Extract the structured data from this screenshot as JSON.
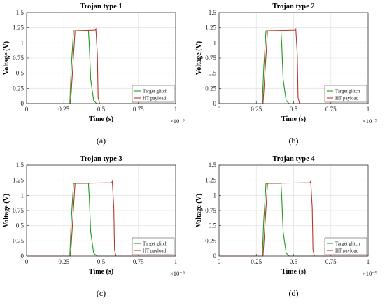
{
  "colors": {
    "target": "#1f9a1f",
    "payload": "#b23a2a",
    "grid": "#e4e4e4"
  },
  "chart_data": [
    {
      "type": "line",
      "title": "Trojan type 1",
      "xlabel": "Time (s)",
      "ylabel": "Voltage (V)",
      "x_exponent": "×10⁻⁹",
      "xlim": [
        0,
        1
      ],
      "ylim": [
        0,
        1.5
      ],
      "xticks": [
        "0",
        "0.25",
        "0.5",
        "0.75",
        "1"
      ],
      "yticks": [
        "0",
        "0.25",
        "0.5",
        "0.75",
        "1",
        "1.25",
        "1.5"
      ],
      "legend": "bottom-right",
      "grid": true,
      "caption": "(a)",
      "series": [
        {
          "name": "Target glitch",
          "x": [
            0,
            0.29,
            0.3,
            0.315,
            0.415,
            0.42,
            0.43,
            0.45,
            0.47,
            1
          ],
          "y": [
            0,
            0,
            0.6,
            1.2,
            1.2,
            1.0,
            0.4,
            0.05,
            0,
            0
          ]
        },
        {
          "name": "HT payload",
          "x": [
            0,
            0.295,
            0.31,
            0.325,
            0.46,
            0.465,
            0.475,
            0.48,
            0.49,
            1
          ],
          "y": [
            0,
            0,
            0.6,
            1.2,
            1.21,
            1.23,
            0.8,
            0.1,
            0,
            0
          ]
        }
      ]
    },
    {
      "type": "line",
      "title": "Trojan type 2",
      "xlabel": "Time (s)",
      "ylabel": "Voltage (V)",
      "x_exponent": "×10⁻⁹",
      "xlim": [
        0,
        1
      ],
      "ylim": [
        0,
        1.5
      ],
      "xticks": [
        "0",
        "0.25",
        "0.5",
        "0.75",
        "1"
      ],
      "yticks": [
        "0",
        "0.25",
        "0.5",
        "0.75",
        "1",
        "1.25",
        "1.5"
      ],
      "legend": "bottom-right",
      "grid": true,
      "caption": "(b)",
      "series": [
        {
          "name": "Target glitch",
          "x": [
            0,
            0.29,
            0.3,
            0.315,
            0.415,
            0.42,
            0.43,
            0.45,
            0.47,
            1
          ],
          "y": [
            0,
            0,
            0.6,
            1.2,
            1.2,
            1.0,
            0.4,
            0.05,
            0,
            0
          ]
        },
        {
          "name": "HT payload",
          "x": [
            0,
            0.295,
            0.31,
            0.325,
            0.51,
            0.515,
            0.525,
            0.53,
            0.54,
            1
          ],
          "y": [
            0,
            0,
            0.6,
            1.2,
            1.21,
            1.23,
            0.8,
            0.1,
            0,
            0
          ]
        }
      ]
    },
    {
      "type": "line",
      "title": "Trojan type 3",
      "xlabel": "Time (s)",
      "ylabel": "Voltage (V)",
      "x_exponent": "×10⁻⁹",
      "xlim": [
        0,
        1
      ],
      "ylim": [
        0,
        1.5
      ],
      "xticks": [
        "0",
        "0.25",
        "0.5",
        "0.75",
        "1"
      ],
      "yticks": [
        "0",
        "0.25",
        "0.5",
        "0.75",
        "1",
        "1.25",
        "1.5"
      ],
      "legend": "bottom-right",
      "grid": true,
      "caption": "(c)",
      "series": [
        {
          "name": "Target glitch",
          "x": [
            0,
            0.29,
            0.3,
            0.315,
            0.415,
            0.42,
            0.43,
            0.45,
            0.47,
            1
          ],
          "y": [
            0,
            0,
            0.6,
            1.2,
            1.2,
            1.0,
            0.4,
            0.05,
            0,
            0
          ]
        },
        {
          "name": "HT payload",
          "x": [
            0,
            0.295,
            0.31,
            0.325,
            0.57,
            0.575,
            0.585,
            0.59,
            0.6,
            1
          ],
          "y": [
            0,
            0,
            0.6,
            1.2,
            1.21,
            1.23,
            0.8,
            0.1,
            0,
            0
          ]
        }
      ]
    },
    {
      "type": "line",
      "title": "Trojan type 4",
      "xlabel": "Time (s)",
      "ylabel": "Voltage (V)",
      "x_exponent": "×10⁻⁹",
      "xlim": [
        0,
        1
      ],
      "ylim": [
        0,
        1.5
      ],
      "xticks": [
        "0",
        "0.25",
        "0.5",
        "0.75",
        "1"
      ],
      "yticks": [
        "0",
        "0.25",
        "0.5",
        "0.75",
        "1",
        "1.25",
        "1.5"
      ],
      "legend": "bottom-right",
      "grid": true,
      "caption": "(d)",
      "series": [
        {
          "name": "Target glitch",
          "x": [
            0,
            0.29,
            0.3,
            0.315,
            0.415,
            0.42,
            0.43,
            0.45,
            0.47,
            1
          ],
          "y": [
            0,
            0,
            0.6,
            1.2,
            1.2,
            1.0,
            0.4,
            0.05,
            0,
            0
          ]
        },
        {
          "name": "HT payload",
          "x": [
            0,
            0.295,
            0.31,
            0.325,
            0.61,
            0.615,
            0.625,
            0.63,
            0.64,
            1
          ],
          "y": [
            0,
            0,
            0.6,
            1.2,
            1.21,
            1.23,
            0.8,
            0.1,
            0,
            0
          ]
        }
      ]
    }
  ]
}
